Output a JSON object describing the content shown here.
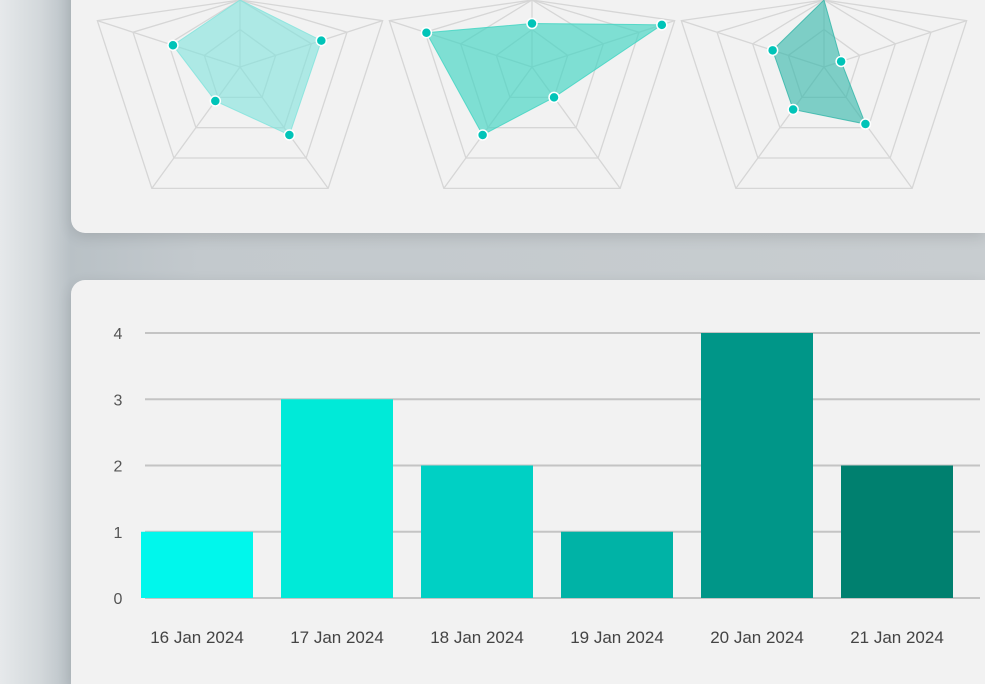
{
  "chart_data": [
    {
      "type": "radar",
      "axes_count": 5,
      "rings": 4,
      "grid": true,
      "charts": [
        {
          "values": [
            80,
            57,
            56,
            28,
            47
          ],
          "fill": "#7fe3dc",
          "fill_opacity": 0.6
        },
        {
          "values": [
            29,
            91,
            25,
            56,
            74
          ],
          "fill": "#3fd4c2",
          "fill_opacity": 0.65
        },
        {
          "values": [
            92,
            12,
            47,
            35,
            36
          ],
          "fill": "#2fb5a8",
          "fill_opacity": 0.6
        }
      ],
      "scale_max": 100,
      "point_color": "#00c4b8"
    },
    {
      "type": "bar",
      "categories": [
        "16 Jan 2024",
        "17 Jan 2024",
        "18 Jan 2024",
        "19 Jan 2024",
        "20 Jan 2024",
        "21 Jan 2024"
      ],
      "values": [
        1,
        3,
        2,
        1,
        4,
        2
      ],
      "colors": [
        "#00f7ec",
        "#00ead8",
        "#00d0c4",
        "#00b3a6",
        "#009688",
        "#00806f"
      ],
      "yticks": [
        "0",
        "1",
        "2",
        "3",
        "4"
      ],
      "ylim": [
        0,
        4
      ],
      "grid": true,
      "xlabel": "",
      "ylabel": ""
    }
  ]
}
